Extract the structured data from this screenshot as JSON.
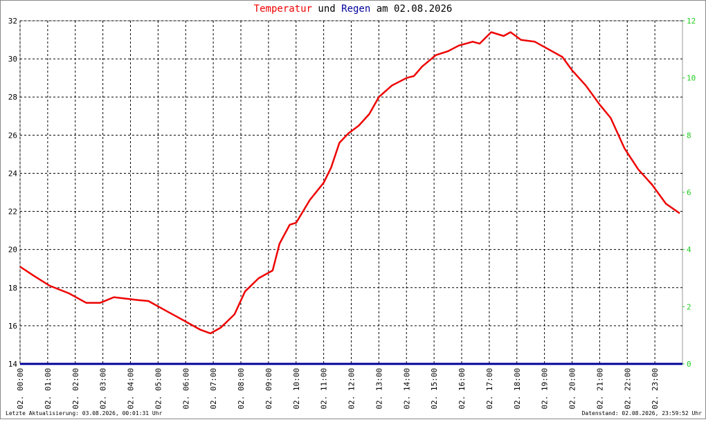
{
  "chart_data": {
    "type": "line",
    "title": [
      "Temperatur",
      "und",
      "Regen",
      "am 02.08.2026"
    ],
    "footer_left": "Letzte Aktualisierung: 03.08.2026, 00:01:31 Uhr",
    "footer_right": "Datenstand: 02.08.2026, 23:59:52 Uhr",
    "xlim": [
      0,
      24
    ],
    "xticks": [
      {
        "value": 0,
        "label": "02. 00:00"
      },
      {
        "value": 1,
        "label": "02. 01:00"
      },
      {
        "value": 2,
        "label": "02. 02:00"
      },
      {
        "value": 3,
        "label": "02. 03:00"
      },
      {
        "value": 4,
        "label": "02. 04:00"
      },
      {
        "value": 5,
        "label": "02. 05:00"
      },
      {
        "value": 6,
        "label": "02. 06:00"
      },
      {
        "value": 7,
        "label": "02. 07:00"
      },
      {
        "value": 8,
        "label": "02. 08:00"
      },
      {
        "value": 9,
        "label": "02. 09:00"
      },
      {
        "value": 10,
        "label": "02. 10:00"
      },
      {
        "value": 11,
        "label": "02. 11:00"
      },
      {
        "value": 12,
        "label": "02. 12:00"
      },
      {
        "value": 13,
        "label": "02. 13:00"
      },
      {
        "value": 14,
        "label": "02. 14:00"
      },
      {
        "value": 15,
        "label": "02. 15:00"
      },
      {
        "value": 16,
        "label": "02. 16:00"
      },
      {
        "value": 17,
        "label": "02. 17:00"
      },
      {
        "value": 18,
        "label": "02. 18:00"
      },
      {
        "value": 19,
        "label": "02. 19:00"
      },
      {
        "value": 20,
        "label": "02. 20:00"
      },
      {
        "value": 21,
        "label": "02. 21:00"
      },
      {
        "value": 22,
        "label": "02. 22:00"
      },
      {
        "value": 23,
        "label": "02. 23:00"
      }
    ],
    "ylim": [
      14,
      32
    ],
    "yticks": [
      14,
      16,
      18,
      20,
      22,
      24,
      26,
      28,
      30,
      32
    ],
    "y2lim": [
      0,
      12
    ],
    "y2ticks": [
      0,
      2,
      4,
      6,
      8,
      10,
      12
    ],
    "y2color": "#22cc22",
    "grid": true,
    "series": [
      {
        "name": "Temperatur",
        "color": "#ee0000",
        "axis": "y",
        "x": [
          0,
          0.52,
          1.07,
          1.77,
          2.4,
          2.9,
          3.4,
          4.27,
          4.65,
          5.27,
          5.9,
          6.52,
          6.9,
          7.27,
          7.77,
          8.15,
          8.65,
          9.15,
          9.4,
          9.77,
          10.0,
          10.5,
          11.0,
          11.27,
          11.57,
          11.9,
          12.27,
          12.65,
          13.0,
          13.47,
          14.0,
          14.27,
          14.57,
          15.07,
          15.5,
          15.9,
          16.4,
          16.65,
          17.07,
          17.52,
          17.77,
          18.15,
          18.65,
          19.15,
          19.65,
          20.0,
          20.5,
          21.0,
          21.4,
          21.9,
          22.4,
          22.9,
          23.4,
          23.9
        ],
        "values": [
          19.1,
          18.6,
          18.1,
          17.7,
          17.2,
          17.2,
          17.5,
          17.35,
          17.3,
          16.8,
          16.3,
          15.8,
          15.6,
          15.9,
          16.6,
          17.8,
          18.5,
          18.9,
          20.3,
          21.3,
          21.4,
          22.6,
          23.5,
          24.3,
          25.6,
          26.1,
          26.5,
          27.1,
          28.0,
          28.6,
          29.0,
          29.1,
          29.6,
          30.2,
          30.4,
          30.7,
          30.9,
          30.8,
          31.4,
          31.2,
          31.4,
          31.0,
          30.9,
          30.5,
          30.1,
          29.4,
          28.6,
          27.6,
          26.9,
          25.3,
          24.2,
          23.4,
          22.4,
          21.9
        ]
      },
      {
        "name": "Regen",
        "color": "#000099",
        "axis": "y2",
        "x": [
          0,
          24
        ],
        "values": [
          0,
          0
        ]
      }
    ]
  }
}
